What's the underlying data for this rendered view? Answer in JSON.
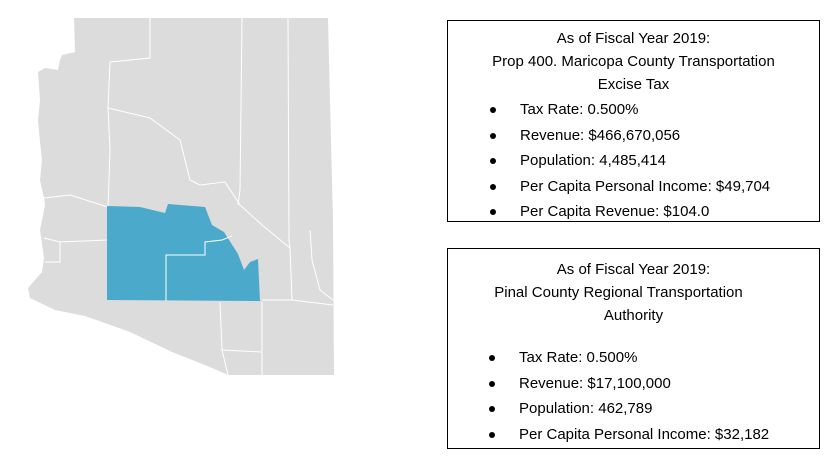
{
  "map": {
    "colors": {
      "state_fill": "#dcdcdc",
      "border": "#ffffff",
      "highlight": "#4ba9cb"
    }
  },
  "maricopa_box": {
    "title_lines": [
      "As of Fiscal Year 2019:",
      "Prop 400. Maricopa County Transportation",
      "Excise Tax"
    ],
    "bullets": [
      "Tax Rate: 0.500%",
      "Revenue: $466,670,056",
      "Population: 4,485,414",
      "Per Capita Personal Income: $49,704",
      "Per Capita Revenue: $104.0"
    ]
  },
  "pinal_box": {
    "title_lines": [
      "As of Fiscal Year 2019:",
      "Pinal County Regional Transportation",
      "Authority"
    ],
    "bullets": [
      "Tax Rate: 0.500%",
      "Revenue: $17,100,000",
      "Population: 462,789",
      "Per Capita Personal Income: $32,182"
    ]
  }
}
